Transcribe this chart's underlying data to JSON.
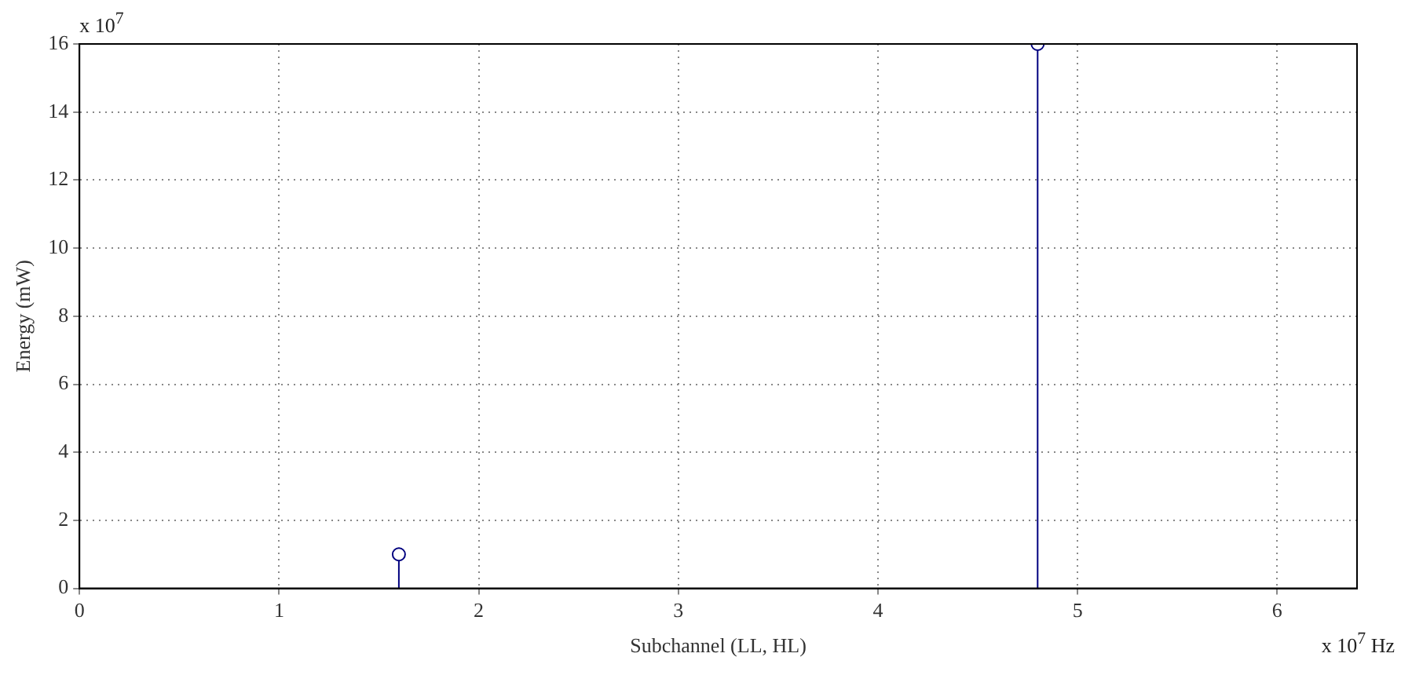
{
  "chart_data": {
    "type": "lollipop",
    "xlabel": "Subchannel (LL, HL)",
    "ylabel": "Energy (mW)",
    "x": [
      1.6,
      4.8
    ],
    "series": [
      {
        "color": "#00007f",
        "values": [
          1,
          16
        ]
      }
    ],
    "xlim": [
      0,
      6.4
    ],
    "xticks": [
      0,
      1,
      2,
      3,
      4,
      5,
      6
    ],
    "ylim": [
      0,
      16
    ],
    "yticks": [
      0,
      2,
      4,
      6,
      8,
      10,
      12,
      14,
      16
    ],
    "grid": true,
    "marker": "circle",
    "legend": false,
    "annotations": [
      "x 10$^{7}$",
      "x 10$^{7}$ Hz"
    ]
  }
}
